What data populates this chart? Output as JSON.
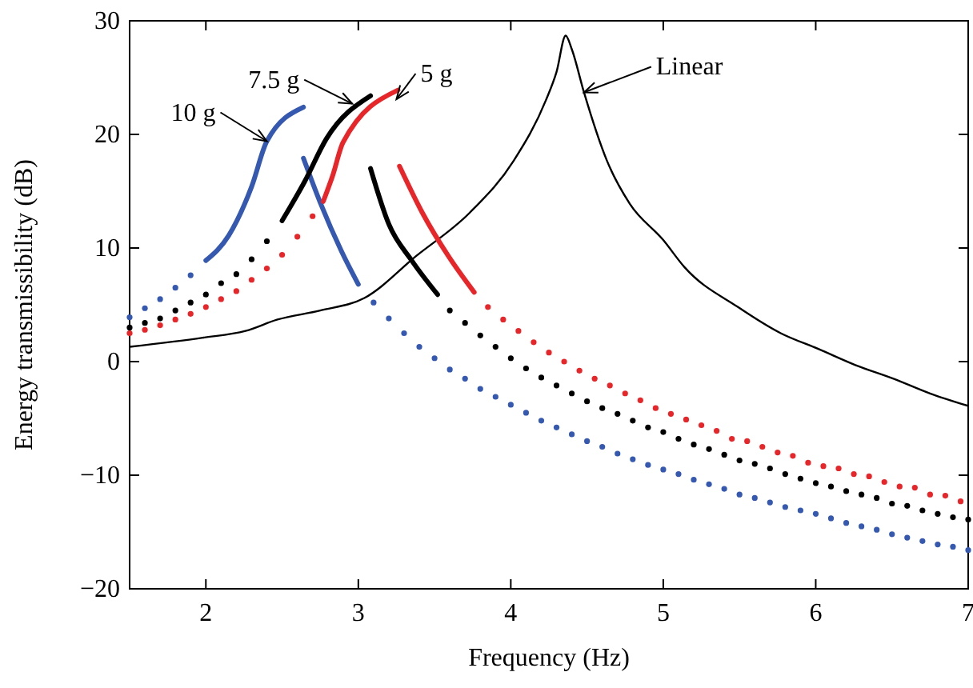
{
  "chart_data": {
    "type": "scatter",
    "xlabel": "Frequency (Hz)",
    "ylabel": "Energy transmissibility (dB)",
    "xlim": [
      1.5,
      7
    ],
    "ylim": [
      -20,
      30
    ],
    "xticks": [
      2,
      3,
      4,
      5,
      6,
      7
    ],
    "yticks": [
      {
        "value": -20,
        "label": "−20"
      },
      {
        "value": -10,
        "label": "−10"
      },
      0,
      10,
      20,
      30
    ],
    "grid": false,
    "series": [
      {
        "type": "line",
        "marker": "none",
        "color": "#000000",
        "x": [
          1.5,
          1.98,
          2.26,
          2.47,
          2.75,
          3.04,
          3.38,
          3.73,
          4.02,
          4.23,
          4.3,
          4.36,
          4.4,
          4.48,
          4.63,
          4.78,
          5.0,
          5.14,
          5.49,
          5.77,
          6.02,
          6.26,
          6.51,
          6.75,
          7.0
        ],
        "values": [
          1.3,
          2.1,
          2.7,
          3.7,
          4.5,
          5.6,
          9.3,
          13.1,
          17.7,
          23.0,
          25.5,
          28.7,
          27.5,
          23.7,
          17.7,
          13.9,
          10.7,
          8.3,
          4.8,
          2.5,
          1.1,
          -0.3,
          -1.5,
          -2.8,
          -3.9
        ]
      },
      {
        "marker": "circle",
        "color": "#3558b0",
        "x": [
          1.5,
          1.6,
          1.7,
          1.8,
          1.9
        ],
        "values": [
          3.9,
          4.7,
          5.5,
          6.5,
          7.6
        ]
      },
      {
        "type": "line",
        "marker": "none",
        "color": "#3558b0",
        "x": [
          2.0,
          2.15,
          2.3,
          2.4,
          2.64
        ],
        "values": [
          8.9,
          11.1,
          15.4,
          19.4,
          22.4
        ]
      },
      {
        "type": "line",
        "marker": "none",
        "color": "#3558b0",
        "x": [
          2.64,
          2.75,
          2.89,
          3.0
        ],
        "values": [
          17.9,
          14.0,
          9.7,
          6.8
        ]
      },
      {
        "marker": "circle",
        "color": "#3558b0",
        "x": [
          3.1,
          3.2,
          3.3,
          3.4,
          3.5,
          3.6,
          3.7,
          3.8,
          3.9,
          4.0,
          4.1,
          4.2,
          4.3,
          4.4,
          4.5,
          4.6,
          4.7,
          4.8,
          4.9,
          5.0,
          5.1,
          5.2,
          5.3,
          5.4,
          5.5,
          5.6,
          5.7,
          5.8,
          5.9,
          6.0,
          6.1,
          6.2,
          6.3,
          6.4,
          6.5,
          6.6,
          6.7,
          6.8,
          6.9,
          7.0
        ],
        "values": [
          5.2,
          3.8,
          2.5,
          1.3,
          0.3,
          -0.7,
          -1.5,
          -2.4,
          -3.1,
          -3.8,
          -4.5,
          -5.2,
          -5.8,
          -6.4,
          -7.0,
          -7.5,
          -8.1,
          -8.6,
          -9.1,
          -9.5,
          -9.9,
          -10.4,
          -10.8,
          -11.2,
          -11.7,
          -12.0,
          -12.4,
          -12.8,
          -13.1,
          -13.4,
          -13.8,
          -14.2,
          -14.5,
          -14.8,
          -15.2,
          -15.5,
          -15.8,
          -16.1,
          -16.3,
          -16.6
        ]
      },
      {
        "marker": "circle",
        "color": "#000000",
        "x": [
          1.5,
          1.6,
          1.7,
          1.8,
          1.9,
          2.0,
          2.1,
          2.2,
          2.3,
          2.4
        ],
        "values": [
          3.0,
          3.4,
          3.8,
          4.5,
          5.2,
          5.9,
          6.9,
          7.7,
          9.0,
          10.6
        ]
      },
      {
        "type": "line",
        "marker": "none",
        "color": "#000000",
        "x": [
          2.5,
          2.65,
          2.79,
          3.08
        ],
        "values": [
          12.4,
          15.9,
          19.6,
          23.4
        ]
      },
      {
        "type": "line",
        "marker": "none",
        "color": "#000000",
        "x": [
          3.08,
          3.2,
          3.35,
          3.52
        ],
        "values": [
          17.0,
          12.1,
          8.9,
          5.9
        ]
      },
      {
        "marker": "circle",
        "color": "#000000",
        "x": [
          3.6,
          3.7,
          3.8,
          3.9,
          4.0,
          4.1,
          4.2,
          4.3,
          4.4,
          4.5,
          4.6,
          4.7,
          4.8,
          4.9,
          5.0,
          5.1,
          5.2,
          5.3,
          5.4,
          5.5,
          5.6,
          5.7,
          5.8,
          5.9,
          6.0,
          6.1,
          6.2,
          6.3,
          6.4,
          6.5,
          6.6,
          6.7,
          6.8,
          6.9,
          7.0
        ],
        "values": [
          4.5,
          3.4,
          2.3,
          1.3,
          0.3,
          -0.6,
          -1.4,
          -2.1,
          -2.8,
          -3.5,
          -4.1,
          -4.6,
          -5.2,
          -5.8,
          -6.2,
          -6.8,
          -7.3,
          -7.7,
          -8.2,
          -8.7,
          -9.0,
          -9.4,
          -9.9,
          -10.3,
          -10.7,
          -11.0,
          -11.4,
          -11.7,
          -12.0,
          -12.5,
          -12.7,
          -13.1,
          -13.4,
          -13.7,
          -13.9
        ]
      },
      {
        "marker": "circle",
        "color": "#e8262a",
        "x": [
          1.5,
          1.6,
          1.7,
          1.8,
          1.9,
          2.0,
          2.1,
          2.2,
          2.3,
          2.4,
          2.5,
          2.6,
          2.7
        ],
        "values": [
          2.5,
          2.8,
          3.2,
          3.7,
          4.2,
          4.8,
          5.5,
          6.2,
          7.2,
          8.2,
          9.4,
          11.0,
          12.8
        ]
      },
      {
        "type": "line",
        "marker": "none",
        "color": "#e8262a",
        "x": [
          2.77,
          2.83,
          2.9,
          3.26
        ],
        "values": [
          14.1,
          16.3,
          19.3,
          23.9
        ]
      },
      {
        "type": "line",
        "marker": "none",
        "color": "#e8262a",
        "x": [
          3.27,
          3.42,
          3.59,
          3.76
        ],
        "values": [
          17.2,
          13.1,
          9.3,
          6.1
        ]
      },
      {
        "marker": "circle",
        "color": "#e8262a",
        "x": [
          3.85,
          3.95,
          4.05,
          4.15,
          4.25,
          4.35,
          4.45,
          4.55,
          4.65,
          4.75,
          4.85,
          4.95,
          5.05,
          5.15,
          5.25,
          5.35,
          5.45,
          5.55,
          5.65,
          5.75,
          5.85,
          5.95,
          6.05,
          6.15,
          6.25,
          6.35,
          6.45,
          6.55,
          6.65,
          6.75,
          6.85,
          6.95
        ],
        "values": [
          4.8,
          3.7,
          2.7,
          1.7,
          0.8,
          0.0,
          -0.8,
          -1.5,
          -2.1,
          -2.8,
          -3.4,
          -4.1,
          -4.6,
          -5.1,
          -5.6,
          -6.1,
          -6.8,
          -7.0,
          -7.5,
          -8.0,
          -8.3,
          -8.9,
          -9.2,
          -9.4,
          -9.9,
          -10.1,
          -10.6,
          -11.0,
          -11.1,
          -11.7,
          -11.8,
          -12.3
        ]
      }
    ],
    "annotations": [
      {
        "text": "10 g",
        "x": 2.4,
        "y": 19.4
      },
      {
        "text": "7.5 g",
        "x": 2.96,
        "y": 22.7
      },
      {
        "text": "5 g",
        "x": 3.25,
        "y": 23.1
      },
      {
        "text": "Linear",
        "x": 4.48,
        "y": 23.7
      }
    ]
  }
}
